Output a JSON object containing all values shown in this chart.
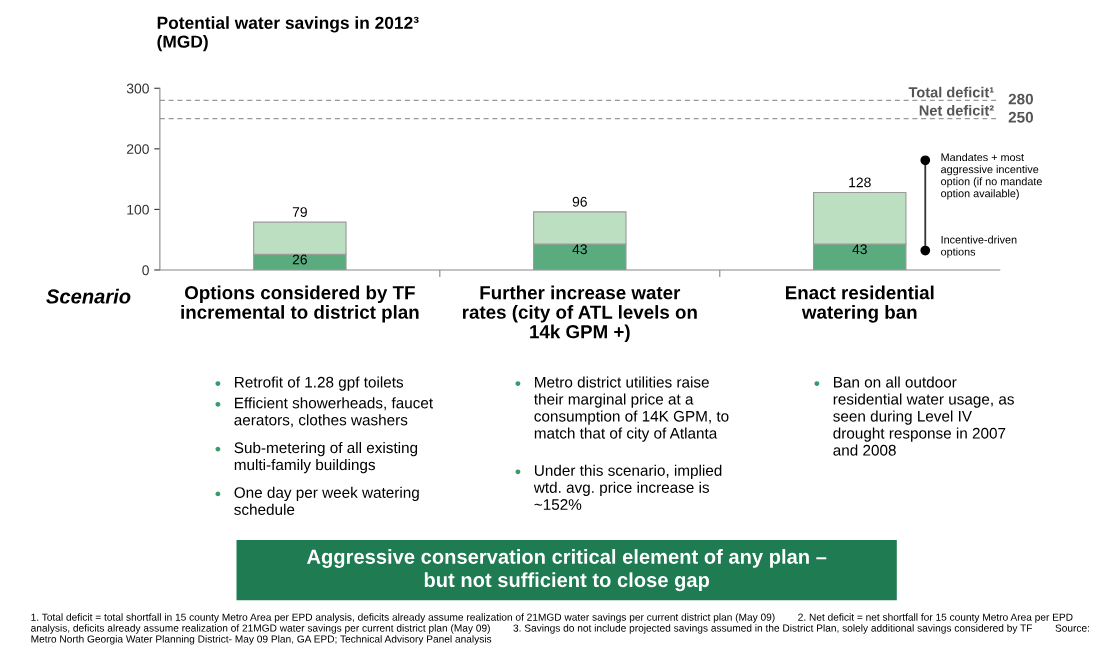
{
  "chart_data": {
    "type": "bar",
    "stacked": true,
    "title": "Potential water savings in 2012³\n(MGD)",
    "categories": [
      "Options considered by TF\nincremental to district plan",
      "Further increase water\nrates (city of ATL levels on\n14k GPM +)",
      "Enact residential\nwatering ban"
    ],
    "series": [
      {
        "color": "#5aac7f",
        "values": [
          26,
          43,
          43
        ],
        "value_labels": [
          "26",
          "43",
          "43"
        ]
      },
      {
        "color": "#bcdfc2",
        "values": [
          53,
          53,
          85
        ]
      }
    ],
    "totals": [
      "79",
      "96",
      "128"
    ],
    "ylim": [
      0,
      300
    ],
    "yticks": [
      0,
      100,
      200,
      300
    ],
    "grid": false,
    "legend": false,
    "ref_lines": [
      {
        "axis": "y",
        "value": 280,
        "label": "Total deficit¹",
        "color": "#999999",
        "line_style": "dashed"
      },
      {
        "axis": "y",
        "value": 250,
        "label": "Net deficit²",
        "color": "#999999",
        "line_style": "dashed"
      }
    ],
    "annotations": [
      "280",
      "250",
      "Mandates + most\naggressive incentive\noption (if no mandate\noption available)",
      "Incentive-driven\noptions",
      "Scenario",
      "Retrofit of 1.28 gpf toilets",
      "Efficient showerheads, faucet\naerators, clothes washers",
      "Sub-metering of all existing\nmulti-family buildings",
      "One day per week watering\nschedule",
      "Metro district utilities raise\ntheir marginal price at a\nconsumption of 14K GPM, to\nmatch that of city of Atlanta",
      "Under this scenario, implied\nwtd. avg. price increase is\n~152%",
      "Ban on all outdoor\nresidential water usage, as\nseen during Level IV\ndrought response in 2007\nand 2008",
      "Aggressive conservation critical element of any plan –\nbut not sufficient to close gap",
      "1. Total deficit = total shortfall in 15 county Metro Area per EPD analysis, deficits already assume realization of 21MGD water savings per current district plan (May 09)        2. Net deficit = net shortfall for 15 county Metro Area per EPD analysis, deficits already assume realization of 21MGD water savings per current district plan (May 09)        3. Savings do not include projected savings assumed in the District Plan, solely additional savings considered by TF        Source: Metro North Georgia Water Planning District- May 09 Plan, GA EPD; Technical Advisory Panel analysis"
    ]
  }
}
